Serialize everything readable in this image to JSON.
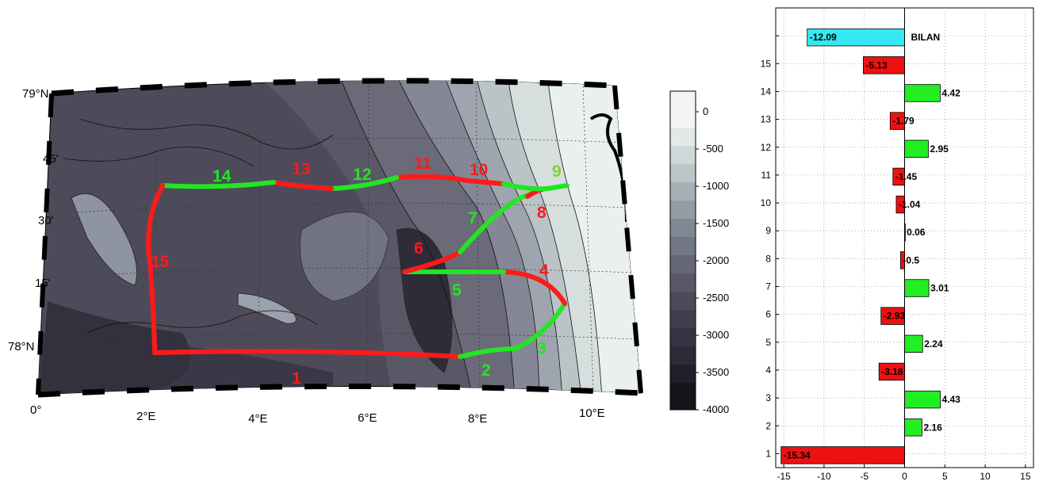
{
  "map": {
    "lat_labels": [
      "79°N",
      "45'",
      "30'",
      "15'",
      "78°N"
    ],
    "lon_labels": [
      "0°",
      "2°E",
      "4°E",
      "6°E",
      "8°E",
      "10°E"
    ],
    "segment_colors": {
      "inflow": "#22e622",
      "outflow": "#ff1a1a",
      "pale": "#7fd43a"
    },
    "segments": [
      {
        "id": "1",
        "color": "outflow"
      },
      {
        "id": "2",
        "color": "inflow"
      },
      {
        "id": "3",
        "color": "inflow"
      },
      {
        "id": "4",
        "color": "outflow"
      },
      {
        "id": "5",
        "color": "inflow"
      },
      {
        "id": "6",
        "color": "outflow"
      },
      {
        "id": "7",
        "color": "inflow"
      },
      {
        "id": "8",
        "color": "outflow"
      },
      {
        "id": "9",
        "color": "pale"
      },
      {
        "id": "10",
        "color": "outflow"
      },
      {
        "id": "11",
        "color": "outflow"
      },
      {
        "id": "12",
        "color": "inflow"
      },
      {
        "id": "13",
        "color": "outflow"
      },
      {
        "id": "14",
        "color": "inflow"
      },
      {
        "id": "15",
        "color": "outflow"
      }
    ]
  },
  "colorbar": {
    "labels": [
      "0",
      "-500",
      "-1000",
      "-1500",
      "-2000",
      "-2500",
      "-3000",
      "-3500",
      "-4000"
    ]
  },
  "chart_data": {
    "type": "bar",
    "orientation": "horizontal",
    "categories": [
      "1",
      "2",
      "3",
      "4",
      "5",
      "6",
      "7",
      "8",
      "9",
      "10",
      "11",
      "12",
      "13",
      "14",
      "15",
      "BILAN"
    ],
    "values": [
      -15.34,
      2.16,
      4.43,
      -3.18,
      2.24,
      -2.93,
      3.01,
      -0.5,
      0.06,
      -1.04,
      -1.45,
      2.95,
      -1.79,
      4.42,
      -5.13,
      -12.09
    ],
    "value_labels": [
      "-15.34",
      "2.16",
      "4.43",
      "-3.18",
      "2.24",
      "-2.93",
      "3.01",
      "-0.5",
      "0.06",
      "-1.04",
      "-1.45",
      "2.95",
      "-1.79",
      "4.42",
      "-5.13",
      "-12.09"
    ],
    "category_axis_labels": [
      "1",
      "2",
      "3",
      "4",
      "5",
      "6",
      "7",
      "8",
      "9",
      "10",
      "11",
      "12",
      "13",
      "14",
      "15",
      ""
    ],
    "xlim": [
      -16,
      16
    ],
    "xticks": [
      -15,
      -10,
      -5,
      0,
      5,
      10,
      15
    ],
    "xtick_labels": [
      "-15",
      "-10",
      "-5",
      "0",
      "5",
      "10",
      "15"
    ],
    "grid": true,
    "colors": {
      "positive": "#22ee22",
      "negative": "#ee1111",
      "total": "#33e8f0"
    },
    "total_label": "BILAN"
  }
}
